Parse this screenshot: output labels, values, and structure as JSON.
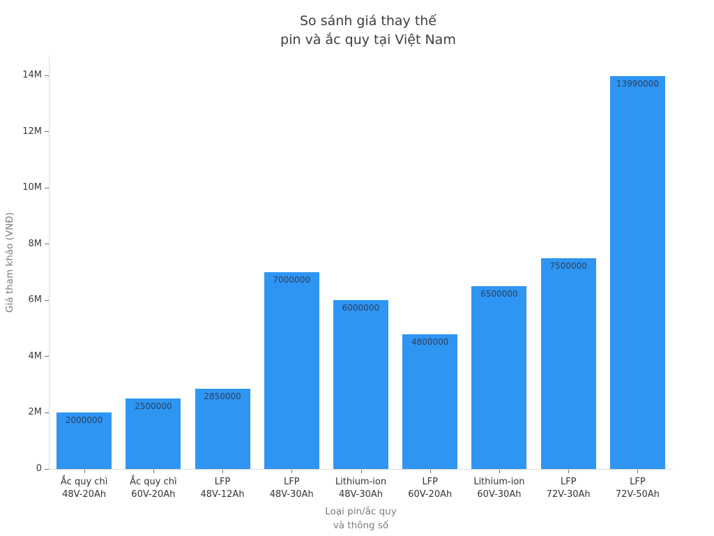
{
  "title": {
    "lines": [
      "So sánh giá thay thế",
      "pin và ắc quy tại Việt Nam"
    ]
  },
  "axes": {
    "y_title": "Giá tham khảo (VNĐ)",
    "x_title_lines": [
      "Loại pin/ắc quy",
      "và thông số"
    ]
  },
  "colors": {
    "bar": "#2f95f3",
    "bar_label": "#2a3f5f",
    "title_text": "#3d3d3d",
    "tick_label": "#3a3a3a",
    "axis_title": "#7c7c7c",
    "axis_line": "#d8d8d8",
    "tick_mark": "#707070",
    "background": "#ffffff"
  },
  "chart_data": {
    "type": "bar",
    "title": "So sánh giá thay thế pin và ắc quy tại Việt Nam",
    "xlabel": "Loại pin/ắc quy và thông số",
    "ylabel": "Giá tham khảo (VNĐ)",
    "categories": [
      [
        "Ắc quy chì",
        "48V-20Ah"
      ],
      [
        "Ắc quy chì",
        "60V-20Ah"
      ],
      [
        "LFP",
        "48V-12Ah"
      ],
      [
        "LFP",
        "48V-30Ah"
      ],
      [
        "Lithium-ion",
        "48V-30Ah"
      ],
      [
        "LFP",
        "60V-20Ah"
      ],
      [
        "Lithium-ion",
        "60V-30Ah"
      ],
      [
        "LFP",
        "72V-30Ah"
      ],
      [
        "LFP",
        "72V-50Ah"
      ]
    ],
    "values": [
      2000000,
      2500000,
      2850000,
      7000000,
      6000000,
      4800000,
      6500000,
      7500000,
      13990000
    ],
    "bar_labels": [
      "2000000",
      "2500000",
      "2850000",
      "7000000",
      "6000000",
      "4800000",
      "6500000",
      "7500000",
      "13990000"
    ],
    "yticks": {
      "values": [
        0,
        2000000,
        4000000,
        6000000,
        8000000,
        10000000,
        12000000,
        14000000
      ],
      "labels": [
        "0",
        "2M",
        "4M",
        "6M",
        "8M",
        "10M",
        "12M",
        "14M"
      ]
    },
    "ylim": [
      0,
      14700000
    ],
    "grid": false,
    "legend": null,
    "bar_label_position": "inside-top"
  }
}
